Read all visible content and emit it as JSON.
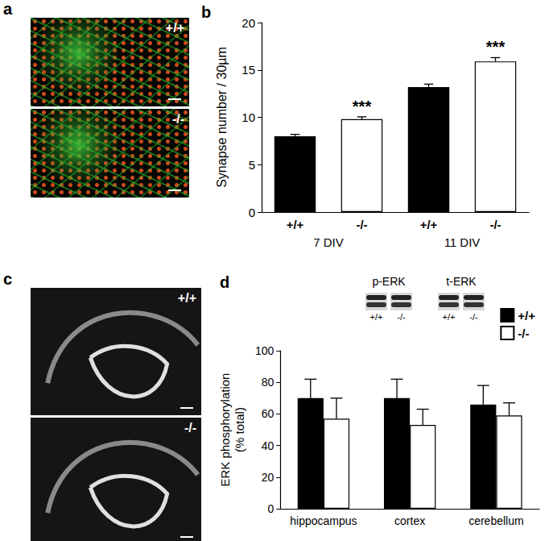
{
  "figure": {
    "panels": [
      {
        "label": "a",
        "kind": "image",
        "insets": [
          "+/+",
          "-/-"
        ]
      },
      {
        "label": "c",
        "kind": "image",
        "insets": [
          "+/+",
          "-/-"
        ]
      }
    ],
    "blots": [
      {
        "label": "p-ERK",
        "lanes": [
          "+/+",
          "-/-"
        ]
      },
      {
        "label": "t-ERK",
        "lanes": [
          "+/+",
          "-/-"
        ]
      }
    ]
  },
  "chart_data": [
    {
      "type": "bar",
      "title": "b",
      "ylabel": "Synapse number / 30µm",
      "categories": [
        "+/+",
        "-/-",
        "+/+",
        "-/-"
      ],
      "groups": [
        "7 DIV",
        "11 DIV"
      ],
      "values": [
        8.0,
        9.8,
        13.2,
        15.9
      ],
      "errors": [
        0.2,
        0.25,
        0.3,
        0.4
      ],
      "colors": [
        "#000000",
        "#ffffff",
        "#000000",
        "#ffffff"
      ],
      "annotations": [
        {
          "index": 1,
          "text": "***"
        },
        {
          "index": 3,
          "text": "***"
        }
      ],
      "ylim": [
        0,
        20
      ],
      "yticks": [
        0,
        5,
        10,
        15,
        20
      ],
      "grid": false
    },
    {
      "type": "bar",
      "title": "d",
      "ylabel": [
        "ERK phosphorylation",
        "(% total)"
      ],
      "categories": [
        "hippocampus",
        "cortex",
        "cerebellum"
      ],
      "series": [
        {
          "name": "+/+",
          "color": "#000000",
          "values": [
            70,
            70,
            66
          ],
          "errors": [
            12,
            12,
            12
          ]
        },
        {
          "name": "-/-",
          "color": "#ffffff",
          "values": [
            57,
            53,
            59
          ],
          "errors": [
            13,
            10,
            8
          ]
        }
      ],
      "ylim": [
        0,
        100
      ],
      "yticks": [
        0,
        20,
        40,
        60,
        80,
        100
      ],
      "grid": false,
      "legend": "top-right"
    }
  ]
}
